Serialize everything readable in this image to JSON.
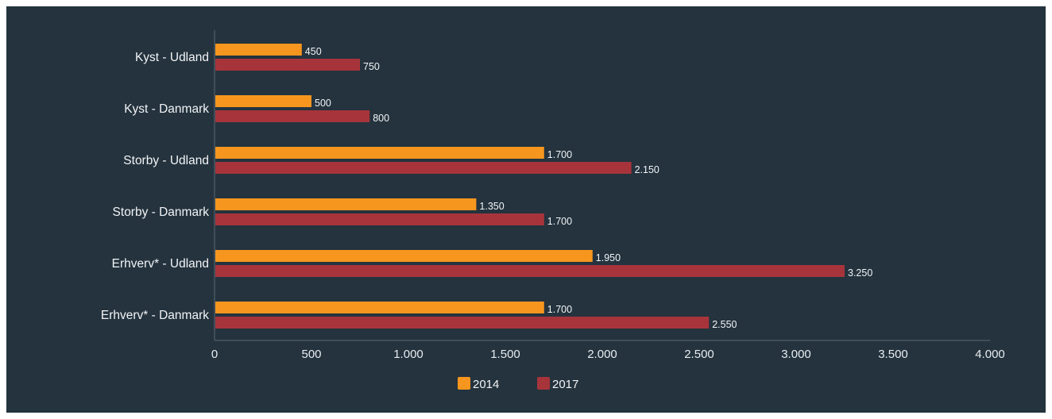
{
  "chart_data": {
    "type": "bar",
    "orientation": "horizontal",
    "categories": [
      "Kyst - Udland",
      "Kyst - Danmark",
      "Storby - Udland",
      "Storby - Danmark",
      "Erhverv* - Udland",
      "Erhverv* - Danmark"
    ],
    "series": [
      {
        "name": "2014",
        "color": "#f7961e",
        "values": [
          450,
          500,
          1700,
          1350,
          1950,
          1700
        ],
        "labels": [
          "450",
          "500",
          "1.700",
          "1.350",
          "1.950",
          "1.700"
        ]
      },
      {
        "name": "2017",
        "color": "#a8343b",
        "values": [
          750,
          800,
          2150,
          1700,
          3250,
          2550
        ],
        "labels": [
          "750",
          "800",
          "2.150",
          "1.700",
          "3.250",
          "2.550"
        ]
      }
    ],
    "xlim": [
      0,
      4000
    ],
    "x_ticks": [
      0,
      500,
      1000,
      1500,
      2000,
      2500,
      3000,
      3500,
      4000
    ],
    "x_tick_labels": [
      "0",
      "500",
      "1.000",
      "1.500",
      "2.000",
      "2.500",
      "3.000",
      "3.500",
      "4.000"
    ],
    "legend_position": "bottom",
    "grid": false,
    "background": "#24333e"
  }
}
